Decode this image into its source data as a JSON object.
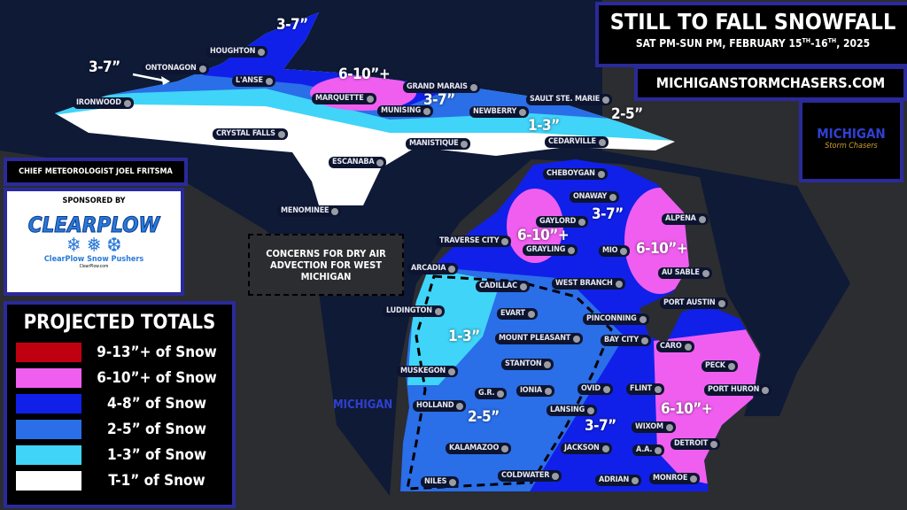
{
  "header": {
    "title": "STILL TO FALL SNOWFALL",
    "subtitle_prefix": "SAT PM-SUN PM, FEBRUARY 15",
    "subtitle_sup1": "TH",
    "subtitle_mid": "-16",
    "subtitle_sup2": "TH",
    "subtitle_suffix": ", 2025",
    "website": "MICHIGANSTORMCHASERS.COM"
  },
  "logo": {
    "text": "MICHIGAN",
    "subtext": "Storm Chasers"
  },
  "credit": "CHIEF METEOROLOGIST JOEL FRITSMA",
  "sponsor": {
    "label": "SPONSORED BY",
    "brand": "CLEARPLOW",
    "name": "ClearPlow Snow Pushers",
    "url": "ClearPlow.com"
  },
  "note": "CONCERNS FOR DRY AIR ADVECTION FOR WEST MICHIGAN",
  "legend": {
    "title": "PROJECTED TOTALS",
    "items": [
      {
        "label": "9-13”+ of Snow",
        "color": "#c00010"
      },
      {
        "label": "6-10”+ of Snow",
        "color": "#f05ef0"
      },
      {
        "label": "4-8” of Snow",
        "color": "#1020e8"
      },
      {
        "label": "2-5” of Snow",
        "color": "#2a6ee8"
      },
      {
        "label": "1-3” of Snow",
        "color": "#40d4f8"
      },
      {
        "label": "T-1” of Snow",
        "color": "#ffffff"
      }
    ]
  },
  "amounts": [
    "3-7”",
    "3-7”",
    "6-10”+",
    "3-7”",
    "1-3”",
    "2-5”",
    "6-10”+",
    "3-7”",
    "6-10”+",
    "1-3”",
    "2-5”",
    "3-7”",
    "6-10”+"
  ],
  "cities": [
    "HOUGHTON",
    "ONTONAGON",
    "IRONWOOD",
    "L'ANSE",
    "MARQUETTE",
    "GRAND MARAIS",
    "MUNISING",
    "NEWBERRY",
    "SAULT STE. MARIE",
    "CRYSTAL FALLS",
    "MANISTIQUE",
    "CEDARVILLE",
    "ESCANABA",
    "MENOMINEE",
    "CHEBOYGAN",
    "ONAWAY",
    "GAYLORD",
    "ALPENA",
    "TRAVERSE CITY",
    "GRAYLING",
    "MIO",
    "AU SABLE",
    "ARCADIA",
    "CADILLAC",
    "WEST BRANCH",
    "PORT AUSTIN",
    "LUDINGTON",
    "EVART",
    "PINCONNING",
    "MOUNT PLEASANT",
    "BAY CITY",
    "CARO",
    "STANTON",
    "PECK",
    "MUSKEGON",
    "G.R.",
    "IONIA",
    "OVID",
    "FLINT",
    "PORT HURON",
    "HOLLAND",
    "LANSING",
    "WIXOM",
    "KALAMAZOO",
    "JACKSON",
    "A.A.",
    "DETROIT",
    "COLDWATER",
    "NILES",
    "ADRIAN",
    "MONROE"
  ]
}
